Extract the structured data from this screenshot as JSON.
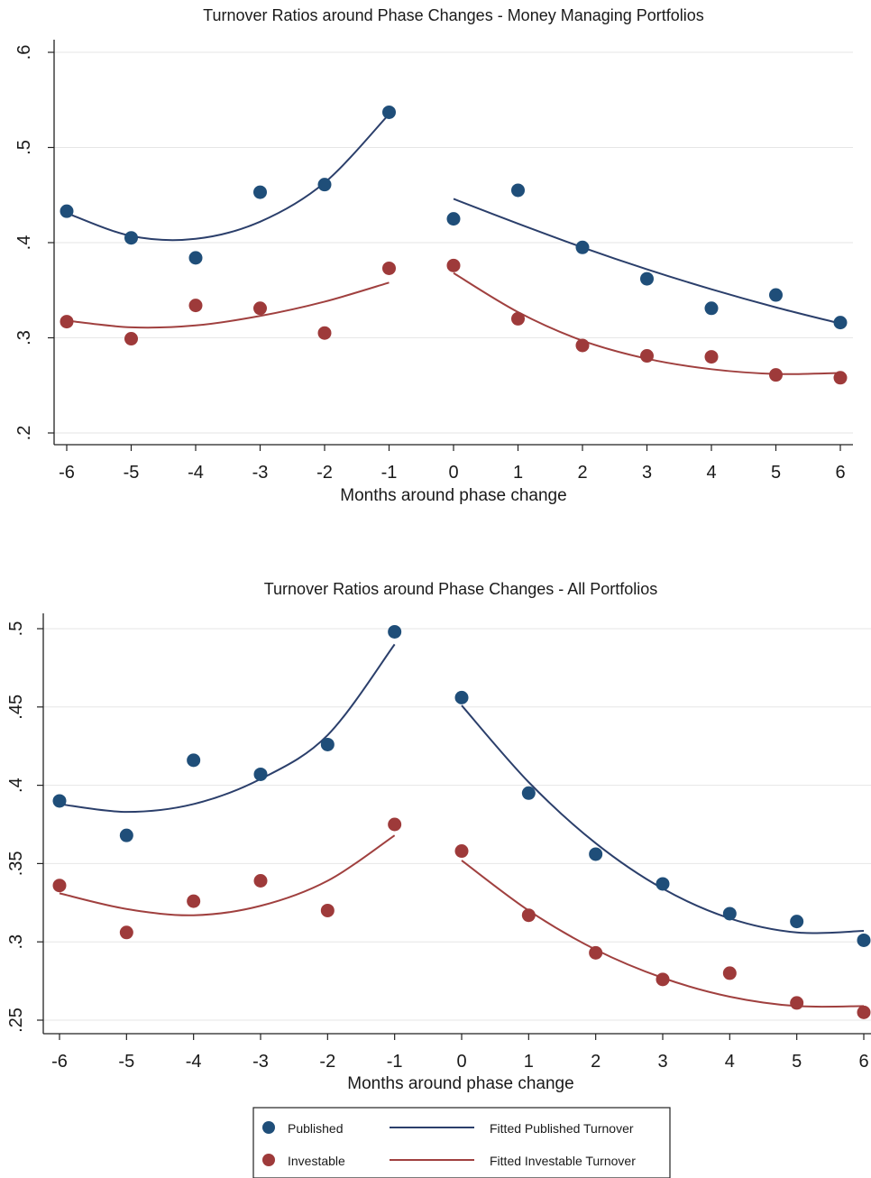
{
  "colors": {
    "published": "#1f4e79",
    "investable": "#9e3a3a",
    "published_line": "#2b3f6b",
    "investable_line": "#a0403f",
    "grid": "#e6e6e6",
    "axis": "#222222"
  },
  "legend": {
    "published": "Published",
    "investable": "Investable",
    "fitted_published": "Fitted Published Turnover",
    "fitted_investable": "Fitted Investable Turnover"
  },
  "chart_data": [
    {
      "type": "scatter",
      "title": "Turnover Ratios around Phase Changes - Money Managing Portfolios",
      "xlabel": "Months around phase change",
      "ylabel": "",
      "x_ticks": [
        -6,
        -5,
        -4,
        -3,
        -2,
        -1,
        0,
        1,
        2,
        3,
        4,
        5,
        6
      ],
      "y_ticks": [
        0.2,
        0.3,
        0.4,
        0.5,
        0.6
      ],
      "y_tick_labels": [
        ".2",
        ".3",
        ".4",
        ".5",
        ".6"
      ],
      "xlim": [
        -6,
        6
      ],
      "ylim": [
        0.2,
        0.6
      ],
      "grid": true,
      "series": [
        {
          "name": "Published",
          "x": [
            -6,
            -5,
            -4,
            -3,
            -2,
            -1,
            0,
            1,
            2,
            3,
            4,
            5,
            6
          ],
          "values": [
            0.433,
            0.405,
            0.384,
            0.453,
            0.461,
            0.537,
            0.425,
            0.455,
            0.395,
            0.362,
            0.331,
            0.345,
            0.316
          ]
        },
        {
          "name": "Investable",
          "x": [
            -6,
            -5,
            -4,
            -3,
            -2,
            -1,
            0,
            1,
            2,
            3,
            4,
            5,
            6
          ],
          "values": [
            0.317,
            0.299,
            0.334,
            0.331,
            0.305,
            0.373,
            0.376,
            0.32,
            0.292,
            0.281,
            0.28,
            0.261,
            0.258
          ]
        },
        {
          "name": "Fitted Published Turnover",
          "segments": [
            {
              "x": [
                -6,
                -5,
                -4,
                -3,
                -2,
                -1
              ],
              "values": [
                0.431,
                0.407,
                0.404,
                0.422,
                0.463,
                0.535
              ]
            },
            {
              "x": [
                0,
                1,
                2,
                3,
                4,
                5,
                6
              ],
              "values": [
                0.446,
                0.42,
                0.395,
                0.372,
                0.351,
                0.332,
                0.315
              ]
            }
          ]
        },
        {
          "name": "Fitted Investable Turnover",
          "segments": [
            {
              "x": [
                -6,
                -5,
                -4,
                -3,
                -2,
                -1
              ],
              "values": [
                0.318,
                0.311,
                0.313,
                0.323,
                0.338,
                0.358
              ]
            },
            {
              "x": [
                0,
                1,
                2,
                3,
                4,
                5,
                6
              ],
              "values": [
                0.368,
                0.327,
                0.297,
                0.278,
                0.267,
                0.262,
                0.263
              ]
            }
          ]
        }
      ]
    },
    {
      "type": "scatter",
      "title": "Turnover Ratios around Phase Changes - All Portfolios",
      "xlabel": "Months around phase change",
      "ylabel": "",
      "x_ticks": [
        -6,
        -5,
        -4,
        -3,
        -2,
        -1,
        0,
        1,
        2,
        3,
        4,
        5,
        6
      ],
      "y_ticks": [
        0.25,
        0.3,
        0.35,
        0.4,
        0.45,
        0.5
      ],
      "y_tick_labels": [
        ".25",
        ".3",
        ".35",
        ".4",
        ".45",
        ".5"
      ],
      "xlim": [
        -6,
        6
      ],
      "ylim": [
        0.25,
        0.5
      ],
      "grid": true,
      "series": [
        {
          "name": "Published",
          "x": [
            -6,
            -5,
            -4,
            -3,
            -2,
            -1,
            0,
            1,
            2,
            3,
            4,
            5,
            6
          ],
          "values": [
            0.39,
            0.368,
            0.416,
            0.407,
            0.426,
            0.498,
            0.456,
            0.395,
            0.356,
            0.337,
            0.318,
            0.313,
            0.301
          ]
        },
        {
          "name": "Investable",
          "x": [
            -6,
            -5,
            -4,
            -3,
            -2,
            -1,
            0,
            1,
            2,
            3,
            4,
            5,
            6
          ],
          "values": [
            0.336,
            0.306,
            0.326,
            0.339,
            0.32,
            0.375,
            0.358,
            0.317,
            0.293,
            0.276,
            0.28,
            0.261,
            0.255
          ]
        },
        {
          "name": "Fitted Published Turnover",
          "segments": [
            {
              "x": [
                -6,
                -5,
                -4,
                -3,
                -2,
                -1
              ],
              "values": [
                0.388,
                0.383,
                0.388,
                0.404,
                0.432,
                0.49
              ]
            },
            {
              "x": [
                0,
                1,
                2,
                3,
                4,
                5,
                6
              ],
              "values": [
                0.451,
                0.402,
                0.363,
                0.334,
                0.315,
                0.306,
                0.307
              ]
            }
          ]
        },
        {
          "name": "Fitted Investable Turnover",
          "segments": [
            {
              "x": [
                -6,
                -5,
                -4,
                -3,
                -2,
                -1
              ],
              "values": [
                0.331,
                0.321,
                0.317,
                0.323,
                0.339,
                0.368
              ]
            },
            {
              "x": [
                0,
                1,
                2,
                3,
                4,
                5,
                6
              ],
              "values": [
                0.352,
                0.32,
                0.295,
                0.277,
                0.265,
                0.259,
                0.259
              ]
            }
          ]
        }
      ]
    }
  ]
}
